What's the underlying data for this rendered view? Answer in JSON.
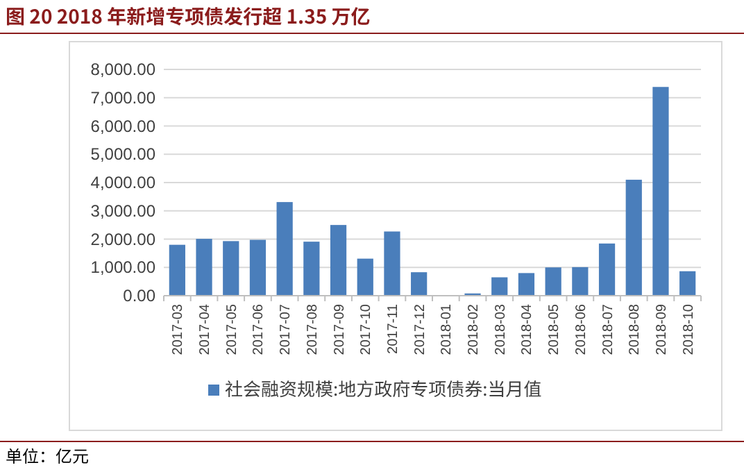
{
  "chart_data": {
    "type": "bar",
    "title": "图 20 2018 年新增专项债发行超 1.35 万亿",
    "categories": [
      "2017-03",
      "2017-04",
      "2017-05",
      "2017-06",
      "2017-07",
      "2017-08",
      "2017-09",
      "2017-10",
      "2017-11",
      "2017-12",
      "2018-01",
      "2018-02",
      "2018-03",
      "2018-04",
      "2018-05",
      "2018-06",
      "2018-07",
      "2018-08",
      "2018-09",
      "2018-10"
    ],
    "series": [
      {
        "name": "社会融资规模:地方政府专项债券:当月值",
        "color": "#4a7ebb",
        "values": [
          1800,
          2010,
          1930,
          1975,
          3310,
          1910,
          2500,
          1310,
          2270,
          830,
          0,
          80,
          650,
          800,
          1000,
          1010,
          1845,
          4100,
          7380,
          865
        ]
      }
    ],
    "ylim": [
      0,
      8000
    ],
    "yticks": [
      {
        "value": 0,
        "label": "0.00"
      },
      {
        "value": 1000,
        "label": "1,000.00"
      },
      {
        "value": 2000,
        "label": "2,000.00"
      },
      {
        "value": 3000,
        "label": "3,000.00"
      },
      {
        "value": 4000,
        "label": "4,000.00"
      },
      {
        "value": 5000,
        "label": "5,000.00"
      },
      {
        "value": 6000,
        "label": "6,000.00"
      },
      {
        "value": 7000,
        "label": "7,000.00"
      },
      {
        "value": 8000,
        "label": "8,000.00"
      }
    ],
    "grid": "y",
    "legend": "bottom",
    "annotations": [
      "单位：亿元"
    ]
  }
}
